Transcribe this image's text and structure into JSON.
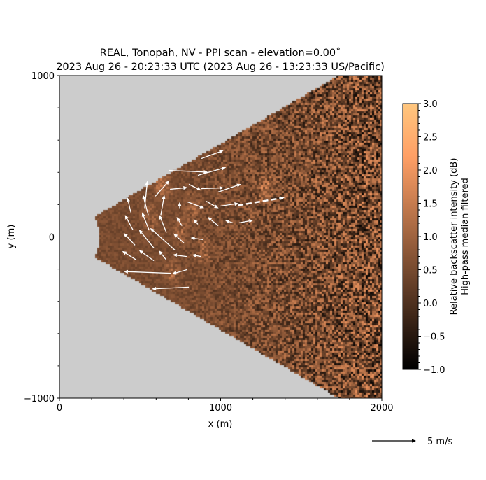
{
  "chart_data": {
    "type": "heatmap",
    "title_line1": "REAL, Tonopah, NV - PPI scan - elevation=0.00$^\\circ$",
    "title_line1_display": "REAL, Tonopah, NV - PPI scan - elevation=0.00˚",
    "title_line2": "2023 Aug 26 - 20:23:33 UTC (2023 Aug 26 - 13:23:33 US/Pacific)",
    "xlabel": "x (m)",
    "ylabel": "y (m)",
    "xlim": [
      0,
      2000
    ],
    "ylim": [
      -1000,
      1000
    ],
    "xticks": [
      0,
      1000,
      2000
    ],
    "xtick_labels": [
      "0",
      "1000",
      "2000"
    ],
    "yticks": [
      -1000,
      0,
      1000
    ],
    "ytick_labels": [
      "−1000",
      "0",
      "1000"
    ],
    "minor_tick_step": 200,
    "scan": {
      "min_range_m": 250,
      "half_angle_deg": 30,
      "background_color": "#cccccc"
    },
    "colorbar": {
      "colormap": "copper",
      "label_line1": "Relative backscatter intensity (dB)",
      "label_line2": "High-pass median filtered",
      "vmin": -1.0,
      "vmax": 3.0,
      "ticks": [
        -1.0,
        -0.5,
        0.0,
        0.5,
        1.0,
        1.5,
        2.0,
        2.5,
        3.0
      ],
      "tick_labels": [
        "−1.0",
        "−0.5",
        "0.0",
        "0.5",
        "1.0",
        "1.5",
        "2.0",
        "2.5",
        "3.0"
      ]
    },
    "quiver_key": {
      "value": 5,
      "label": "5 m/s"
    },
    "quiver": [
      {
        "x": 881,
        "y": 486,
        "u": 2.5,
        "v": 0.9
      },
      {
        "x": 681,
        "y": 412,
        "u": 4.4,
        "v": -0.2
      },
      {
        "x": 859,
        "y": 382,
        "u": 3.2,
        "v": 0.9
      },
      {
        "x": 595,
        "y": 252,
        "u": 1.6,
        "v": 1.8
      },
      {
        "x": 529,
        "y": 178,
        "u": 0.3,
        "v": 3.1
      },
      {
        "x": 443,
        "y": 152,
        "u": -0.4,
        "v": 1.7
      },
      {
        "x": 686,
        "y": 295,
        "u": 2.0,
        "v": 0.2
      },
      {
        "x": 803,
        "y": 326,
        "u": 1.4,
        "v": -0.7
      },
      {
        "x": 877,
        "y": 299,
        "u": 2.6,
        "v": 0.1
      },
      {
        "x": 985,
        "y": 278,
        "u": 2.6,
        "v": 0.9
      },
      {
        "x": 551,
        "y": 135,
        "u": -0.6,
        "v": 2.3
      },
      {
        "x": 664,
        "y": 26,
        "u": -0.8,
        "v": 2.0
      },
      {
        "x": 629,
        "y": 135,
        "u": 0.4,
        "v": 2.3
      },
      {
        "x": 746,
        "y": 178,
        "u": 0.0,
        "v": 0.7
      },
      {
        "x": 794,
        "y": 217,
        "u": 1.9,
        "v": -0.7
      },
      {
        "x": 911,
        "y": 221,
        "u": 1.4,
        "v": -0.8
      },
      {
        "x": 998,
        "y": 191,
        "u": 2.1,
        "v": 0.3
      },
      {
        "x": 1107,
        "y": 195,
        "u": 5.3,
        "v": 0.9,
        "dashed": true
      },
      {
        "x": 456,
        "y": 43,
        "u": -0.9,
        "v": 1.7
      },
      {
        "x": 556,
        "y": 43,
        "u": -0.8,
        "v": 2.0
      },
      {
        "x": 469,
        "y": -52,
        "u": -1.3,
        "v": 1.4
      },
      {
        "x": 586,
        "y": -69,
        "u": -1.7,
        "v": 2.1
      },
      {
        "x": 716,
        "y": -82,
        "u": -2.8,
        "v": 2.5
      },
      {
        "x": 760,
        "y": 69,
        "u": -0.6,
        "v": 1.0
      },
      {
        "x": 859,
        "y": 78,
        "u": -0.5,
        "v": 0.6
      },
      {
        "x": 985,
        "y": 69,
        "u": -1.2,
        "v": 1.0
      },
      {
        "x": 1076,
        "y": 87,
        "u": -0.9,
        "v": 0.3
      },
      {
        "x": 1115,
        "y": 87,
        "u": 1.6,
        "v": 0.3
      },
      {
        "x": 773,
        "y": -39,
        "u": -1.2,
        "v": 1.1
      },
      {
        "x": 890,
        "y": -17,
        "u": -1.4,
        "v": 0.2
      },
      {
        "x": 477,
        "y": -143,
        "u": -1.6,
        "v": 1.0
      },
      {
        "x": 586,
        "y": -148,
        "u": -1.7,
        "v": 1.2
      },
      {
        "x": 660,
        "y": -139,
        "u": -0.8,
        "v": 1.0
      },
      {
        "x": 790,
        "y": -122,
        "u": -1.6,
        "v": 0.2
      },
      {
        "x": 877,
        "y": -122,
        "u": -1.0,
        "v": 0.2
      },
      {
        "x": 694,
        "y": -226,
        "u": -5.4,
        "v": 0.2
      },
      {
        "x": 790,
        "y": -204,
        "u": -1.7,
        "v": -0.5
      },
      {
        "x": 803,
        "y": -312,
        "u": -4.2,
        "v": -0.2
      }
    ]
  }
}
